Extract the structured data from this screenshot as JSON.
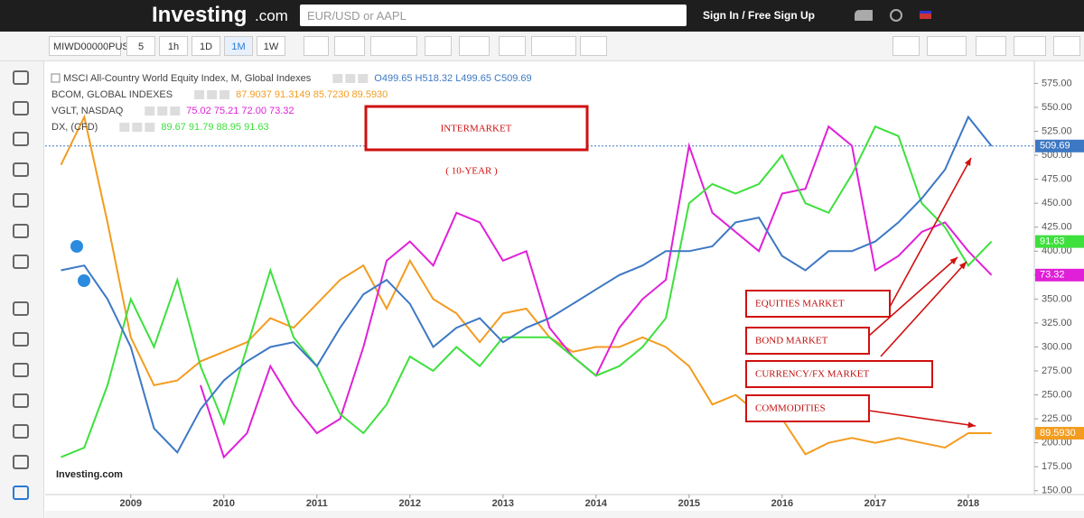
{
  "header": {
    "brand": "Investing",
    "brand_suffix": ".com",
    "search_placeholder": "EUR/USD or AAPL",
    "sign_in": "Sign In / Free Sign Up"
  },
  "toolbar": {
    "symbol": "MIWD00000PUS",
    "intervals": [
      "5",
      "1h",
      "1D",
      "1M",
      "1W"
    ]
  },
  "chart_data": {
    "type": "line",
    "watermark": "Investing.com",
    "x": [
      2008.25,
      2008.5,
      2008.75,
      2009,
      2009.25,
      2009.5,
      2009.75,
      2010,
      2010.25,
      2010.5,
      2010.75,
      2011,
      2011.25,
      2011.5,
      2011.75,
      2012,
      2012.25,
      2012.5,
      2012.75,
      2013,
      2013.25,
      2013.5,
      2013.75,
      2014,
      2014.25,
      2014.5,
      2014.75,
      2015,
      2015.25,
      2015.5,
      2015.75,
      2016,
      2016.25,
      2016.5,
      2016.75,
      2017,
      2017.25,
      2017.5,
      2017.75,
      2018,
      2018.25
    ],
    "xlim": [
      2008.08,
      2018.71
    ],
    "xticks": [
      2009,
      2010,
      2011,
      2012,
      2013,
      2014,
      2015,
      2016,
      2017,
      2018
    ],
    "ylim": [
      146,
      598
    ],
    "yticks": [
      {
        "value": 150,
        "label": "150.00"
      },
      {
        "value": 175,
        "label": "175.00"
      },
      {
        "value": 200,
        "label": "200.00"
      },
      {
        "value": 225,
        "label": "225.00"
      },
      {
        "value": 250,
        "label": "250.00"
      },
      {
        "value": 275,
        "label": "275.00"
      },
      {
        "value": 300,
        "label": "300.00"
      },
      {
        "value": 325,
        "label": "325.00"
      },
      {
        "value": 350,
        "label": "350.00"
      },
      {
        "value": 375,
        "label": "375.00"
      },
      {
        "value": 400,
        "label": "400.00"
      },
      {
        "value": 425,
        "label": "425.00"
      },
      {
        "value": 450,
        "label": "450.00"
      },
      {
        "value": 475,
        "label": "475.00"
      },
      {
        "value": 500,
        "label": "500.00"
      },
      {
        "value": 525,
        "label": "525.00"
      },
      {
        "value": 550,
        "label": "550.00"
      },
      {
        "value": 575,
        "label": "575.00"
      }
    ],
    "series": [
      {
        "name": "MSCI All-Country World Equity Index, M, Global Indexes",
        "ohlc": "O499.65 H518.32 L499.65 C509.69",
        "color": "#3d78c4",
        "last_label": "509.69",
        "values": [
          380,
          385,
          350,
          300,
          215,
          190,
          235,
          265,
          285,
          300,
          305,
          280,
          320,
          355,
          370,
          345,
          300,
          320,
          330,
          305,
          320,
          330,
          345,
          360,
          375,
          385,
          400,
          400,
          405,
          430,
          435,
          395,
          380,
          400,
          400,
          410,
          430,
          455,
          485,
          540,
          509.69
        ]
      },
      {
        "name": "BCOM, GLOBAL INDEXES",
        "ohlc": "87.9037 91.3149 85.7230 89.5930",
        "color": "#f39c1f",
        "last_label": "89.5930",
        "values": [
          490,
          540,
          430,
          310,
          260,
          265,
          285,
          295,
          305,
          330,
          320,
          345,
          370,
          385,
          340,
          390,
          350,
          335,
          305,
          335,
          340,
          310,
          295,
          300,
          300,
          310,
          300,
          280,
          240,
          250,
          230,
          225,
          188,
          200,
          205,
          200,
          205,
          200,
          195,
          210,
          210
        ]
      },
      {
        "name": "VGLT, NASDAQ",
        "ohlc": "75.02 75.21 72.00 73.32",
        "color": "#e020d8",
        "last_label": "73.32",
        "values": [
          null,
          null,
          null,
          null,
          null,
          null,
          260,
          185,
          210,
          280,
          240,
          210,
          225,
          300,
          390,
          410,
          385,
          440,
          430,
          390,
          400,
          320,
          290,
          270,
          320,
          350,
          370,
          510,
          440,
          420,
          400,
          460,
          465,
          530,
          510,
          380,
          395,
          420,
          430,
          400,
          375
        ]
      },
      {
        "name": "DX, (CFD)",
        "ohlc": "89.67 91.79 88.95 91.63",
        "color": "#3ee03e",
        "last_label": "91.63",
        "values": [
          185,
          195,
          260,
          350,
          300,
          370,
          280,
          220,
          300,
          380,
          310,
          280,
          230,
          210,
          240,
          290,
          275,
          300,
          280,
          310,
          310,
          310,
          290,
          270,
          280,
          300,
          330,
          450,
          470,
          460,
          470,
          500,
          450,
          440,
          480,
          530,
          520,
          450,
          425,
          385,
          410
        ]
      }
    ],
    "annotations": {
      "title": "INTERMARKET",
      "subtitle": "( 10-YEAR )",
      "labels": [
        "EQUITIES MARKET",
        "BOND MARKET",
        "CURRENCY/FX MARKET",
        "COMMODITIES"
      ]
    }
  }
}
